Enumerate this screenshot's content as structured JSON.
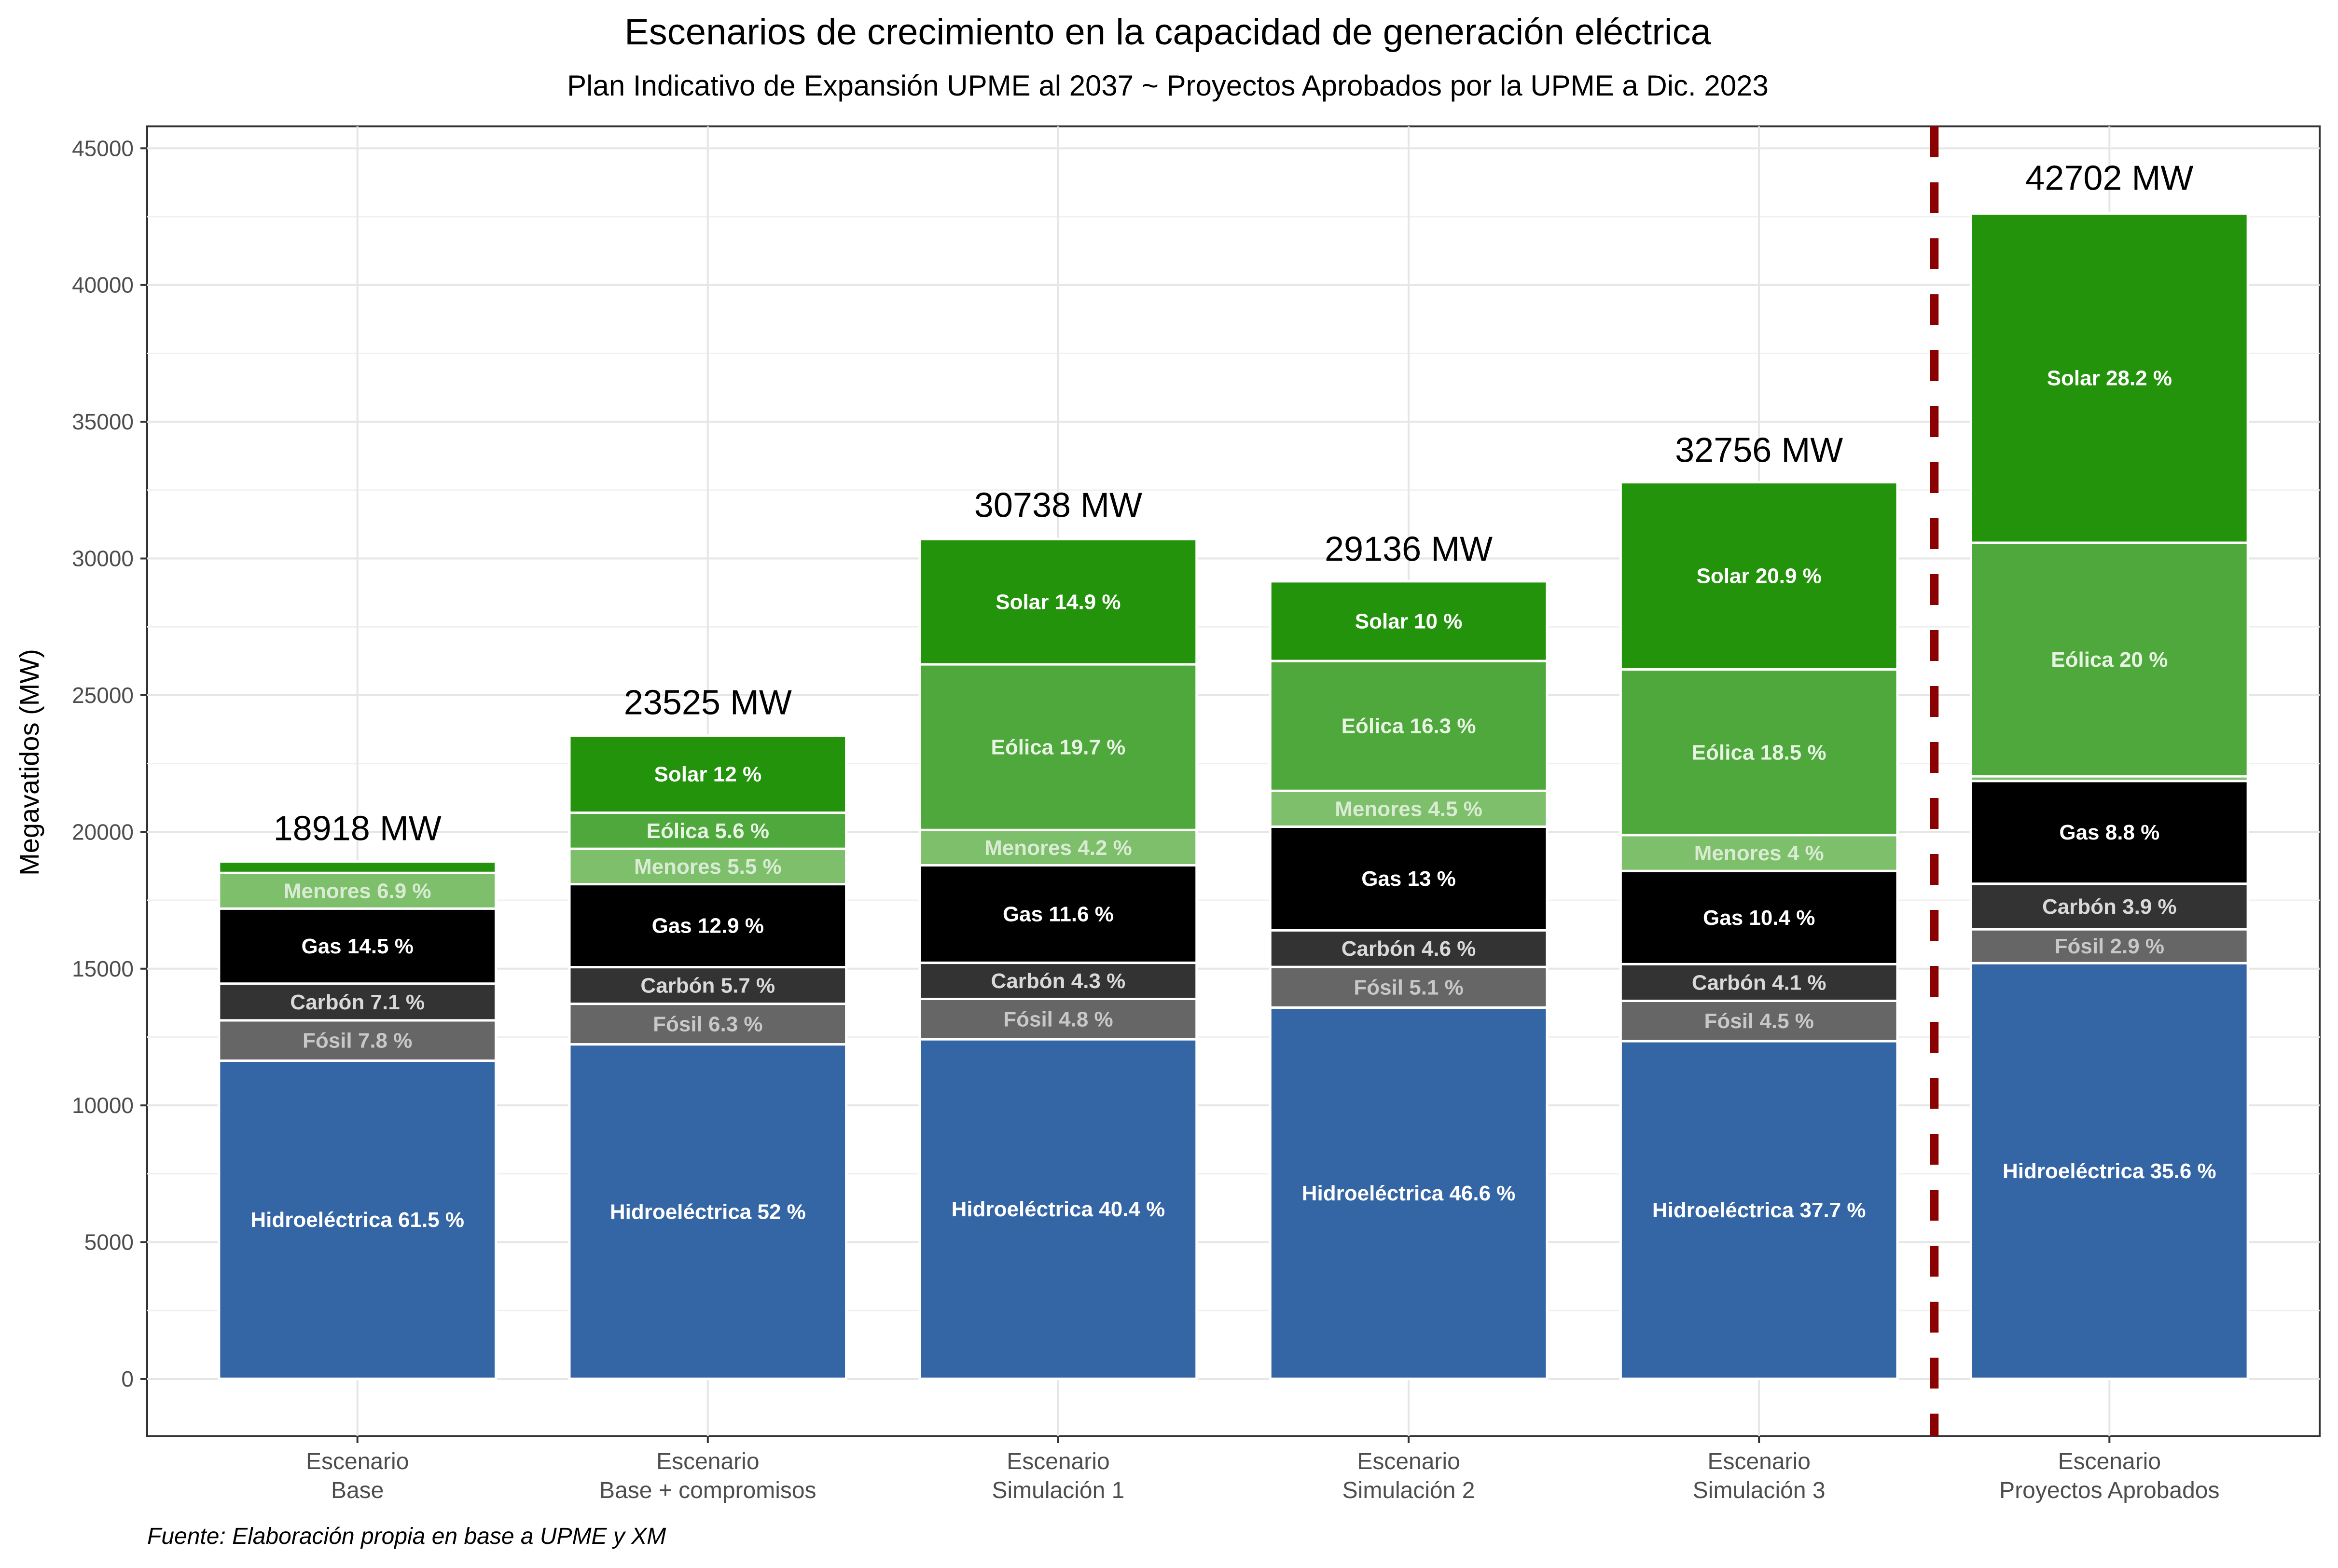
{
  "chart_data": {
    "type": "bar",
    "stacked": true,
    "title": "Escenarios de crecimiento en la capacidad de generación eléctrica",
    "subtitle": "Plan Indicativo de Expansión UPME al 2037 ~ Proyectos Aprobados por la UPME a Dic. 2023",
    "ylabel": "Megavatidos (MW)",
    "xlabel": "",
    "ylim": [
      -2100,
      45800
    ],
    "yticks": [
      0,
      5000,
      10000,
      15000,
      20000,
      25000,
      30000,
      35000,
      40000,
      45000
    ],
    "grid": true,
    "legend": "none",
    "caption": "Fuente: Elaboración propia en base a UPME y XM",
    "reference_line": {
      "type": "vertical-dashed",
      "between": [
        4,
        5
      ],
      "color": "#8b0000"
    },
    "categories": [
      [
        "Escenario",
        "Base"
      ],
      [
        "Escenario",
        "Base + compromisos"
      ],
      [
        "Escenario",
        "Simulación 1"
      ],
      [
        "Escenario",
        "Simulación 2"
      ],
      [
        "Escenario",
        "Simulación 3"
      ],
      [
        "Escenario",
        "Proyectos Aprobados"
      ]
    ],
    "totals": [
      18918,
      23525,
      30738,
      29136,
      32756,
      42702
    ],
    "total_labels": [
      "18918 MW",
      "23525 MW",
      "30738 MW",
      "29136 MW",
      "32756 MW",
      "42702 MW"
    ],
    "series": [
      {
        "key": "hidro",
        "color": "#3465a4",
        "text_color": "#ffffff",
        "values_pct": [
          61.5,
          52,
          40.4,
          46.6,
          37.7,
          35.6
        ],
        "labels": [
          "Hidroeléctrica 61.5 %",
          "Hidroeléctrica 52 %",
          "Hidroeléctrica 40.4 %",
          "Hidroeléctrica 46.6 %",
          "Hidroeléctrica 37.7 %",
          "Hidroeléctrica 35.6 %"
        ]
      },
      {
        "key": "fosil",
        "color": "#666666",
        "text_color": "#c8c8c8",
        "values_pct": [
          7.8,
          6.3,
          4.8,
          5.1,
          4.5,
          2.9
        ],
        "labels": [
          "Fósil 7.8 %",
          "Fósil 6.3 %",
          "Fósil 4.8 %",
          "Fósil 5.1 %",
          "Fósil 4.5 %",
          "Fósil 2.9 %"
        ]
      },
      {
        "key": "carbon",
        "color": "#333333",
        "text_color": "#d9d9d9",
        "values_pct": [
          7.1,
          5.7,
          4.3,
          4.6,
          4.1,
          3.9
        ],
        "labels": [
          "Carbón 7.1 %",
          "Carbón 5.7 %",
          "Carbón 4.3 %",
          "Carbón 4.6 %",
          "Carbón 4.1 %",
          "Carbón 3.9 %"
        ]
      },
      {
        "key": "gas",
        "color": "#000000",
        "text_color": "#ffffff",
        "values_pct": [
          14.5,
          12.9,
          11.6,
          13,
          10.4,
          8.8
        ],
        "labels": [
          "Gas 14.5 %",
          "Gas 12.9 %",
          "Gas 11.6 %",
          "Gas 13 %",
          "Gas 10.4 %",
          "Gas 8.8 %"
        ]
      },
      {
        "key": "menores",
        "color": "#7dbf6b",
        "text_color": "#d9ecd3",
        "values_pct": [
          6.9,
          5.5,
          4.2,
          4.5,
          4,
          0.4
        ],
        "labels": [
          "Menores 6.9 %",
          "Menores 5.5 %",
          "Menores 4.2 %",
          "Menores 4.5 %",
          "Menores 4 %",
          ""
        ]
      },
      {
        "key": "eolica",
        "color": "#4ea83c",
        "text_color": "#e8f4e3",
        "values_pct": [
          0,
          5.6,
          19.7,
          16.3,
          18.5,
          20
        ],
        "labels": [
          "",
          "Eólica 5.6 %",
          "Eólica 19.7 %",
          "Eólica 16.3 %",
          "Eólica 18.5 %",
          "Eólica 20 %"
        ]
      },
      {
        "key": "solar",
        "color": "#23930b",
        "text_color": "#ffffff",
        "values_pct": [
          2.2,
          12,
          14.9,
          10,
          20.9,
          28.2
        ],
        "labels": [
          "",
          "Solar 12 %",
          "Solar 14.9 %",
          "Solar 10 %",
          "Solar 20.9 %",
          "Solar 28.2 %"
        ]
      }
    ]
  }
}
